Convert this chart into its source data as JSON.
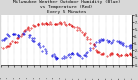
{
  "title": "Milwaukee Weather Outdoor Humidity (Blue)\nvs Temperature (Red)\nEvery 5 Minutes",
  "title_fontsize": 3.2,
  "background_color": "#d8d8d8",
  "plot_bg_color": "#ffffff",
  "blue_color": "#0000dd",
  "red_color": "#dd0000",
  "marker_size": 0.7,
  "blue_x": [
    0.0,
    0.01,
    0.02,
    0.03,
    0.04,
    0.05,
    0.06,
    0.07,
    0.08,
    0.09,
    0.1,
    0.11,
    0.12,
    0.13,
    0.14,
    0.15,
    0.16,
    0.17,
    0.18,
    0.19,
    0.2,
    0.21,
    0.22,
    0.23,
    0.24,
    0.25,
    0.26,
    0.27,
    0.28,
    0.29,
    0.3,
    0.31,
    0.32,
    0.33,
    0.34,
    0.35,
    0.36,
    0.37,
    0.38,
    0.39,
    0.4,
    0.41,
    0.42,
    0.43,
    0.44,
    0.45,
    0.46,
    0.47,
    0.48,
    0.49,
    0.5,
    0.51,
    0.52,
    0.53,
    0.54,
    0.55,
    0.56,
    0.57,
    0.58,
    0.59,
    0.6,
    0.61,
    0.62,
    0.63,
    0.64,
    0.65,
    0.66,
    0.67,
    0.68,
    0.69,
    0.7,
    0.71,
    0.72,
    0.73,
    0.74,
    0.75,
    0.76,
    0.77,
    0.78,
    0.79,
    0.8,
    0.81,
    0.82,
    0.83,
    0.84,
    0.85,
    0.86,
    0.87,
    0.88,
    0.89,
    0.9,
    0.91,
    0.92,
    0.93,
    0.94,
    0.95,
    0.96,
    0.97,
    0.98,
    0.99,
    1.0
  ],
  "blue_y": [
    0.52,
    0.5,
    0.51,
    0.53,
    0.55,
    0.57,
    0.58,
    0.6,
    0.62,
    0.63,
    0.62,
    0.6,
    0.58,
    0.57,
    0.58,
    0.6,
    0.62,
    0.64,
    0.65,
    0.63,
    0.6,
    0.58,
    0.56,
    0.54,
    0.52,
    0.5,
    0.48,
    0.46,
    0.44,
    0.42,
    0.4,
    0.38,
    0.36,
    0.33,
    0.3,
    0.27,
    0.24,
    0.22,
    0.2,
    0.18,
    0.16,
    0.15,
    0.14,
    0.13,
    0.13,
    0.13,
    0.14,
    0.15,
    0.16,
    0.17,
    0.18,
    0.19,
    0.2,
    0.21,
    0.22,
    0.23,
    0.22,
    0.21,
    0.2,
    0.19,
    0.18,
    0.17,
    0.16,
    0.17,
    0.18,
    0.2,
    0.23,
    0.26,
    0.3,
    0.34,
    0.38,
    0.42,
    0.45,
    0.47,
    0.48,
    0.49,
    0.5,
    0.51,
    0.51,
    0.5,
    0.49,
    0.48,
    0.47,
    0.46,
    0.46,
    0.47,
    0.48,
    0.48,
    0.47,
    0.46,
    0.45,
    0.44,
    0.43,
    0.42,
    0.41,
    0.4,
    0.39,
    0.38,
    0.37,
    0.36,
    0.35
  ],
  "red_x": [
    0.0,
    0.01,
    0.02,
    0.03,
    0.04,
    0.05,
    0.06,
    0.07,
    0.08,
    0.09,
    0.1,
    0.11,
    0.12,
    0.13,
    0.14,
    0.15,
    0.16,
    0.17,
    0.18,
    0.19,
    0.2,
    0.21,
    0.22,
    0.23,
    0.24,
    0.25,
    0.26,
    0.27,
    0.28,
    0.29,
    0.3,
    0.31,
    0.32,
    0.33,
    0.34,
    0.35,
    0.36,
    0.37,
    0.38,
    0.39,
    0.4,
    0.41,
    0.42,
    0.43,
    0.44,
    0.45,
    0.46,
    0.47,
    0.48,
    0.49,
    0.5,
    0.51,
    0.52,
    0.53,
    0.54,
    0.55,
    0.56,
    0.57,
    0.58,
    0.59,
    0.6,
    0.61,
    0.62,
    0.63,
    0.64,
    0.65,
    0.66,
    0.67,
    0.68,
    0.69,
    0.7,
    0.71,
    0.72,
    0.73,
    0.74,
    0.75,
    0.76,
    0.77,
    0.78,
    0.79,
    0.8,
    0.81,
    0.82,
    0.83,
    0.84,
    0.85,
    0.86,
    0.87,
    0.88,
    0.89,
    0.9,
    0.91,
    0.92,
    0.93,
    0.94,
    0.95,
    0.96,
    0.97,
    0.98,
    0.99,
    1.0
  ],
  "red_y": [
    0.35,
    0.34,
    0.34,
    0.35,
    0.36,
    0.38,
    0.4,
    0.43,
    0.45,
    0.46,
    0.46,
    0.46,
    0.47,
    0.5,
    0.54,
    0.58,
    0.62,
    0.66,
    0.69,
    0.71,
    0.73,
    0.74,
    0.75,
    0.76,
    0.77,
    0.78,
    0.79,
    0.8,
    0.81,
    0.82,
    0.83,
    0.84,
    0.84,
    0.84,
    0.84,
    0.83,
    0.83,
    0.83,
    0.83,
    0.83,
    0.83,
    0.83,
    0.83,
    0.82,
    0.82,
    0.82,
    0.82,
    0.82,
    0.83,
    0.83,
    0.83,
    0.82,
    0.81,
    0.8,
    0.79,
    0.78,
    0.77,
    0.75,
    0.73,
    0.71,
    0.69,
    0.67,
    0.65,
    0.62,
    0.6,
    0.57,
    0.54,
    0.5,
    0.46,
    0.42,
    0.38,
    0.34,
    0.31,
    0.28,
    0.26,
    0.25,
    0.24,
    0.23,
    0.22,
    0.22,
    0.22,
    0.22,
    0.22,
    0.22,
    0.22,
    0.23,
    0.23,
    0.22,
    0.21,
    0.2,
    0.2,
    0.19,
    0.19,
    0.19,
    0.19,
    0.2,
    0.2,
    0.2,
    0.21,
    0.22,
    0.23
  ],
  "right_ytick_vals": [
    0.0,
    0.143,
    0.286,
    0.429,
    0.571,
    0.714,
    0.857,
    1.0
  ],
  "right_ytick_labels": [
    "0..",
    "1..",
    "2..",
    "3..",
    "4..",
    "5..",
    "7..",
    "9.."
  ]
}
